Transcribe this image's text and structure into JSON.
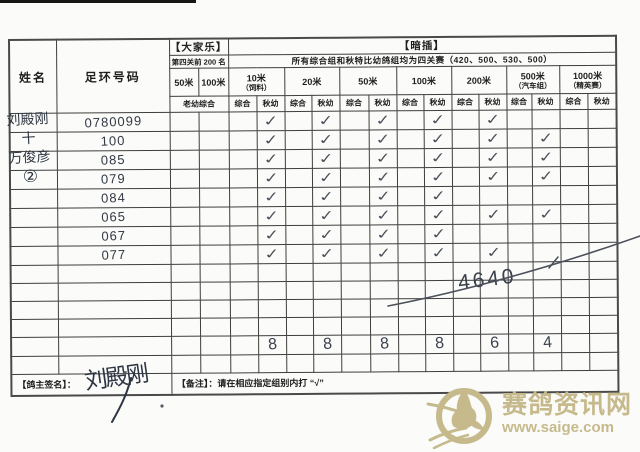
{
  "table": {
    "name_header": "姓名",
    "ring_header": "足环号码",
    "dajiale": {
      "title": "【大家乐】",
      "subtitle": "第四关前 200 名",
      "cols": [
        "50米",
        "100米"
      ],
      "sub": "老幼综合"
    },
    "anzhi": {
      "title": "【暗插】",
      "subtitle": "所有综合组和秋特比幼鸽组均为四关赛（420、500、530、500）"
    },
    "distance_cols": [
      {
        "key": "10",
        "label": "10米",
        "note": "（饲料）"
      },
      {
        "key": "20",
        "label": "20米",
        "note": ""
      },
      {
        "key": "50",
        "label": "50米",
        "note": ""
      },
      {
        "key": "100",
        "label": "100米",
        "note": ""
      },
      {
        "key": "200",
        "label": "200米",
        "note": ""
      },
      {
        "key": "500",
        "label": "500米",
        "note": "（汽车组）"
      },
      {
        "key": "1000",
        "label": "1000米",
        "note": "（精英赛）"
      }
    ],
    "sub_labels": {
      "zonghe": "综合",
      "qiuyou": "秋幼"
    },
    "rows": [
      {
        "ring": "0780099",
        "checks": [
          "10",
          "20",
          "50",
          "100",
          "200"
        ]
      },
      {
        "ring": "100",
        "checks": [
          "10",
          "20",
          "50",
          "100",
          "200",
          "500"
        ]
      },
      {
        "ring": "085",
        "checks": [
          "10",
          "20",
          "50",
          "100",
          "200",
          "500"
        ]
      },
      {
        "ring": "079",
        "checks": [
          "10",
          "20",
          "50",
          "100",
          "200",
          "500"
        ]
      },
      {
        "ring": "084",
        "checks": [
          "10",
          "20",
          "50",
          "100"
        ]
      },
      {
        "ring": "065",
        "checks": [
          "10",
          "20",
          "50",
          "100",
          "200",
          "500"
        ]
      },
      {
        "ring": "067",
        "checks": [
          "10",
          "20",
          "50",
          "100"
        ]
      },
      {
        "ring": "077",
        "checks": [
          "10",
          "20",
          "50",
          "100",
          "200"
        ]
      },
      {
        "ring": "",
        "checks": []
      },
      {
        "ring": "",
        "checks": []
      },
      {
        "ring": "",
        "checks": []
      },
      {
        "ring": "",
        "checks": []
      },
      {
        "type": "counts",
        "ring": "",
        "checks": []
      },
      {
        "ring": "",
        "checks": []
      }
    ],
    "counts": {
      "10": "8",
      "20": "8",
      "50": "8",
      "100": "8",
      "200": "6",
      "500": "4"
    },
    "footer": {
      "sign_label": "【鸽主签名】：",
      "note_label": "【备注】：请在相应指定组别内打 “√”"
    }
  },
  "handwriting": {
    "check_glyph": "✓",
    "name_line1": "刘殿刚",
    "name_line2": "十",
    "name_line3": "万俊彦",
    "name_line4": "②",
    "total_annotation": "4640",
    "signature": "刘殿刚"
  },
  "watermark": {
    "site_name": "赛鸽资讯网",
    "site_url": "www.saige.com",
    "color": "#c6ba8c"
  }
}
